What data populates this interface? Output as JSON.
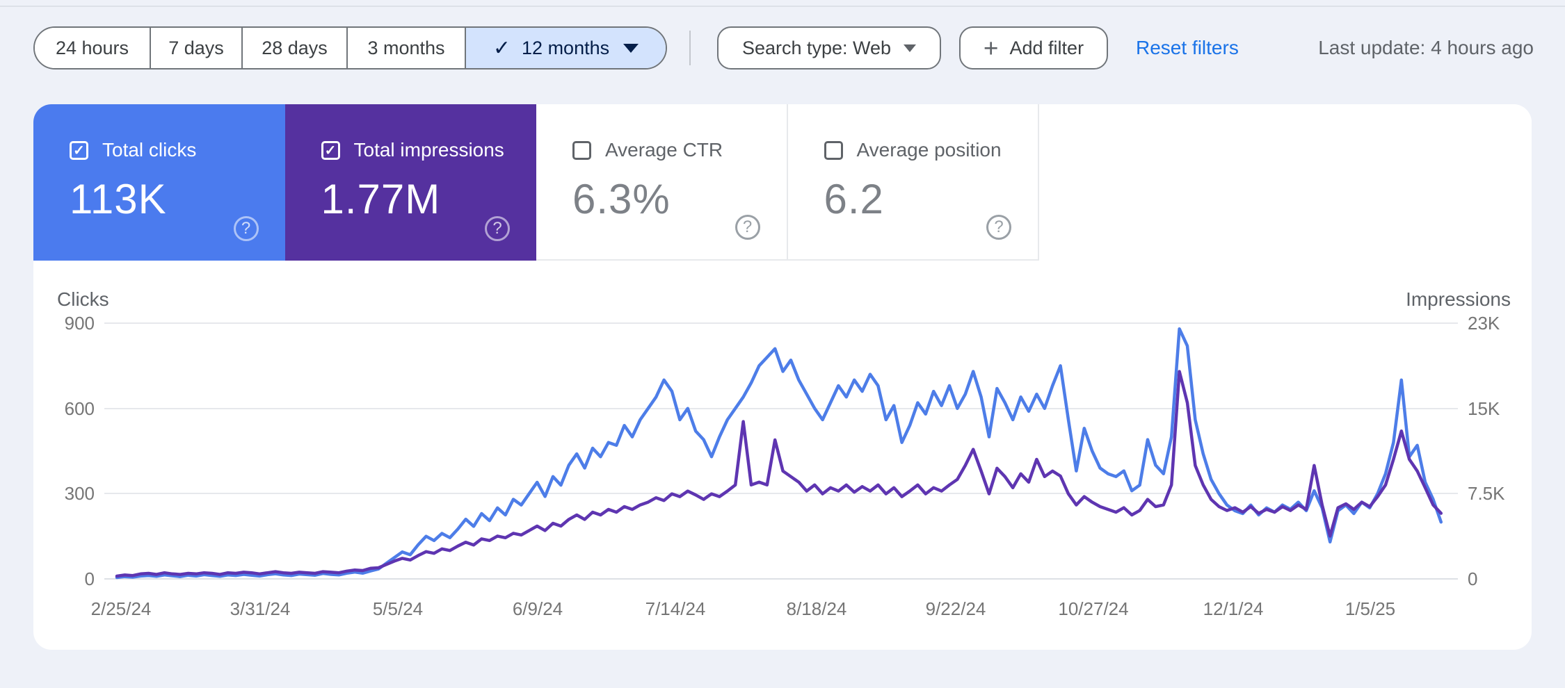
{
  "colors": {
    "page_background": "#eef1f8",
    "card_background": "#ffffff",
    "clicks_blue": "#4b7bee",
    "impressions_purple": "#55319f",
    "clicks_line": "#4d7de8",
    "impressions_line": "#5e35b1",
    "selected_chip_bg": "#d3e3fd",
    "selected_chip_text": "#041e49",
    "link_blue": "#1a73e8",
    "gridline": "#e6e8ec",
    "muted_text": "#5f6368"
  },
  "icons": {
    "check": "✓",
    "plus": "+",
    "help": "?"
  },
  "toolbar": {
    "date_ranges": [
      {
        "label": "24 hours",
        "selected": false
      },
      {
        "label": "7 days",
        "selected": false
      },
      {
        "label": "28 days",
        "selected": false
      },
      {
        "label": "3 months",
        "selected": false
      },
      {
        "label": "12 months",
        "selected": true
      }
    ],
    "search_type_label": "Search type: Web",
    "add_filter_label": "Add filter",
    "reset_filters_label": "Reset filters",
    "last_update": "Last update: 4 hours ago"
  },
  "metric_cards": [
    {
      "id": "total-clicks",
      "label": "Total clicks",
      "value": "113K",
      "checked": true,
      "color": "#4b7bee"
    },
    {
      "id": "total-impressions",
      "label": "Total impressions",
      "value": "1.77M",
      "checked": true,
      "color": "#55319f"
    },
    {
      "id": "average-ctr",
      "label": "Average CTR",
      "value": "6.3%",
      "checked": false
    },
    {
      "id": "average-position",
      "label": "Average position",
      "value": "6.2",
      "checked": false
    }
  ],
  "chart_data": {
    "type": "line",
    "grid": true,
    "legend_position": "none",
    "point_interval_days": 2,
    "left_axis": {
      "label": "Clicks",
      "ticks": [
        "900",
        "600",
        "300",
        "0"
      ],
      "max": 900
    },
    "right_axis": {
      "label": "Impressions",
      "ticks": [
        "23K",
        "15K",
        "7.5K",
        "0"
      ],
      "max": 23000
    },
    "x_tick_labels": [
      "2/25/24",
      "3/31/24",
      "5/5/24",
      "6/9/24",
      "7/14/24",
      "8/18/24",
      "9/22/24",
      "10/27/24",
      "12/1/24",
      "1/5/25"
    ],
    "series": [
      {
        "name": "Clicks",
        "axis": "left",
        "color": "#4d7de8",
        "values": [
          5,
          8,
          6,
          10,
          12,
          9,
          14,
          11,
          8,
          13,
          10,
          15,
          12,
          9,
          14,
          12,
          16,
          13,
          10,
          15,
          18,
          14,
          12,
          17,
          15,
          13,
          19,
          16,
          14,
          20,
          24,
          20,
          28,
          35,
          55,
          75,
          95,
          85,
          120,
          150,
          135,
          160,
          145,
          175,
          210,
          185,
          230,
          205,
          250,
          225,
          280,
          260,
          300,
          340,
          290,
          360,
          330,
          400,
          440,
          390,
          460,
          430,
          480,
          470,
          540,
          500,
          560,
          600,
          640,
          700,
          660,
          560,
          600,
          520,
          490,
          430,
          500,
          560,
          600,
          640,
          690,
          750,
          780,
          810,
          730,
          770,
          700,
          650,
          600,
          560,
          620,
          680,
          640,
          700,
          660,
          720,
          680,
          560,
          610,
          480,
          540,
          620,
          580,
          660,
          610,
          680,
          600,
          650,
          730,
          640,
          500,
          670,
          620,
          560,
          640,
          590,
          650,
          600,
          680,
          750,
          560,
          380,
          530,
          450,
          390,
          370,
          360,
          380,
          310,
          330,
          490,
          400,
          370,
          500,
          880,
          820,
          560,
          440,
          350,
          300,
          260,
          240,
          230,
          260,
          225,
          250,
          235,
          260,
          245,
          270,
          240,
          310,
          250,
          130,
          240,
          260,
          230,
          270,
          250,
          300,
          370,
          480,
          700,
          430,
          470,
          340,
          280,
          200
        ]
      },
      {
        "name": "Impressions",
        "axis": "right",
        "color": "#5e35b1",
        "values": [
          250,
          350,
          300,
          450,
          500,
          400,
          550,
          450,
          400,
          500,
          450,
          550,
          500,
          400,
          550,
          500,
          600,
          550,
          450,
          550,
          650,
          550,
          500,
          600,
          550,
          500,
          650,
          600,
          550,
          700,
          800,
          750,
          950,
          1000,
          1300,
          1600,
          1850,
          1700,
          2100,
          2450,
          2300,
          2700,
          2550,
          2950,
          3300,
          3050,
          3600,
          3450,
          3850,
          3700,
          4100,
          3950,
          4350,
          4750,
          4350,
          5000,
          4750,
          5350,
          5750,
          5350,
          6000,
          5750,
          6250,
          6000,
          6500,
          6250,
          6650,
          6900,
          7300,
          7050,
          7650,
          7400,
          7900,
          7550,
          7150,
          7650,
          7400,
          7900,
          8450,
          14150,
          8450,
          8700,
          8450,
          12500,
          9700,
          9200,
          8700,
          7900,
          8450,
          7650,
          8200,
          7900,
          8450,
          7800,
          8300,
          7900,
          8450,
          7650,
          8200,
          7400,
          7900,
          8450,
          7650,
          8200,
          7900,
          8450,
          8950,
          10200,
          11650,
          9700,
          7650,
          9950,
          9200,
          8200,
          9450,
          8700,
          10750,
          9200,
          9700,
          9250,
          7650,
          6650,
          7400,
          6900,
          6500,
          6250,
          6000,
          6400,
          5750,
          6150,
          7150,
          6500,
          6650,
          8450,
          18650,
          15850,
          10200,
          8450,
          7150,
          6500,
          6150,
          6400,
          6000,
          6500,
          5900,
          6250,
          6000,
          6500,
          6150,
          6650,
          6250,
          10200,
          6650,
          3850,
          6400,
          6750,
          6250,
          6900,
          6500,
          7400,
          8450,
          10750,
          13300,
          10750,
          9700,
          8200,
          6650,
          5900
        ]
      }
    ]
  }
}
